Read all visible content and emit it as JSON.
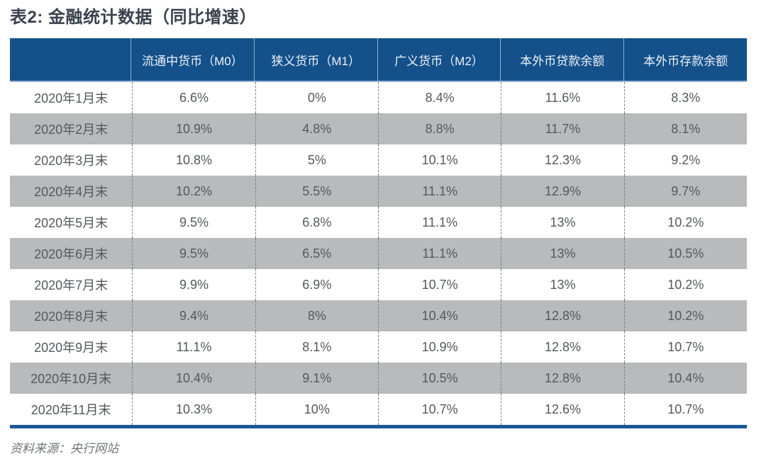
{
  "title": "表2: 金融统计数据（同比增速）",
  "source": "资料来源：央行网站",
  "table": {
    "columns": [
      "",
      "流通中货币（M0）",
      "狭义货币（M1）",
      "广义货币（M2）",
      "本外币贷款余额",
      "本外币存款余额"
    ],
    "rows": [
      {
        "label": "2020年1月末",
        "values": [
          "6.6%",
          "0%",
          "8.4%",
          "11.6%",
          "8.3%"
        ]
      },
      {
        "label": "2020年2月末",
        "values": [
          "10.9%",
          "4.8%",
          "8.8%",
          "11.7%",
          "8.1%"
        ]
      },
      {
        "label": "2020年3月末",
        "values": [
          "10.8%",
          "5%",
          "10.1%",
          "12.3%",
          "9.2%"
        ]
      },
      {
        "label": "2020年4月末",
        "values": [
          "10.2%",
          "5.5%",
          "11.1%",
          "12.9%",
          "9.7%"
        ]
      },
      {
        "label": "2020年5月末",
        "values": [
          "9.5%",
          "6.8%",
          "11.1%",
          "13%",
          "10.2%"
        ]
      },
      {
        "label": "2020年6月末",
        "values": [
          "9.5%",
          "6.5%",
          "11.1%",
          "13%",
          "10.5%"
        ]
      },
      {
        "label": "2020年7月末",
        "values": [
          "9.9%",
          "6.9%",
          "10.7%",
          "13%",
          "10.2%"
        ]
      },
      {
        "label": "2020年8月末",
        "values": [
          "9.4%",
          "8%",
          "10.4%",
          "12.8%",
          "10.2%"
        ]
      },
      {
        "label": "2020年9月末",
        "values": [
          "11.1%",
          "8.1%",
          "10.9%",
          "12.8%",
          "10.7%"
        ]
      },
      {
        "label": "2020年10月末",
        "values": [
          "10.4%",
          "9.1%",
          "10.5%",
          "12.8%",
          "10.4%"
        ]
      },
      {
        "label": "2020年11月末",
        "values": [
          "10.3%",
          "10%",
          "10.7%",
          "12.6%",
          "10.7%"
        ]
      }
    ]
  },
  "chart_data": {
    "type": "table",
    "title": "表2: 金融统计数据（同比增速）",
    "unit": "%",
    "categories": [
      "2020年1月末",
      "2020年2月末",
      "2020年3月末",
      "2020年4月末",
      "2020年5月末",
      "2020年6月末",
      "2020年7月末",
      "2020年8月末",
      "2020年9月末",
      "2020年10月末",
      "2020年11月末"
    ],
    "series": [
      {
        "name": "流通中货币（M0）",
        "values": [
          6.6,
          10.9,
          10.8,
          10.2,
          9.5,
          9.5,
          9.9,
          9.4,
          11.1,
          10.4,
          10.3
        ]
      },
      {
        "name": "狭义货币（M1）",
        "values": [
          0,
          4.8,
          5,
          5.5,
          6.8,
          6.5,
          6.9,
          8,
          8.1,
          9.1,
          10
        ]
      },
      {
        "name": "广义货币（M2）",
        "values": [
          8.4,
          8.8,
          10.1,
          11.1,
          11.1,
          11.1,
          10.7,
          10.4,
          10.9,
          10.5,
          10.7
        ]
      },
      {
        "name": "本外币贷款余额",
        "values": [
          11.6,
          11.7,
          12.3,
          12.9,
          13,
          13,
          13,
          12.8,
          12.8,
          12.8,
          12.6
        ]
      },
      {
        "name": "本外币存款余额",
        "values": [
          8.3,
          8.1,
          9.2,
          9.7,
          10.2,
          10.5,
          10.2,
          10.2,
          10.7,
          10.4,
          10.7
        ]
      }
    ],
    "source": "资料来源：央行网站"
  },
  "colors": {
    "header_bg": "#14518b",
    "header_text": "#eef3f8",
    "header_divider": "#8fb0cd",
    "header_underline": "#9db9d4",
    "alt_row_bg": "#b9babc",
    "body_text": "#55585c",
    "dashed_divider": "#7b7e81",
    "bottom_rule": "#1b5896",
    "title_text": "#3a424c"
  }
}
